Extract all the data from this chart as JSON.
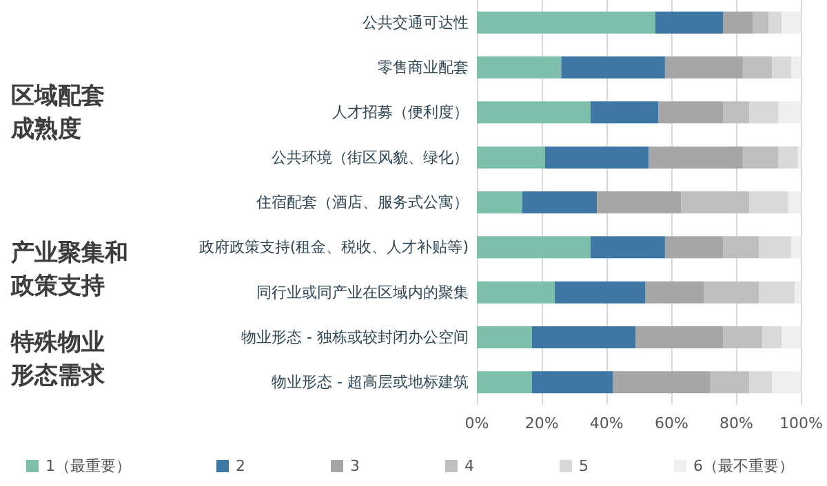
{
  "chart_data": {
    "type": "bar",
    "orientation": "horizontal",
    "stacked": true,
    "categories": [
      "公共交通可达性",
      "零售商业配套",
      "人才招募（便利度）",
      "公共环境（街区风貌、绿化）",
      "住宿配套（酒店、服务式公寓）",
      "政府政策支持(租金、税收、人才补贴等)",
      "同行业或同产业在区域内的聚集",
      "物业形态 - 独栋或较封闭办公空间",
      "物业形态 - 超高层或地标建筑"
    ],
    "series": [
      {
        "name": "1（最重要）",
        "color": "#7dbfab",
        "values": [
          55,
          26,
          35,
          21,
          14,
          35,
          24,
          17,
          17
        ]
      },
      {
        "name": "2",
        "color": "#3e77a3",
        "values": [
          21,
          32,
          21,
          32,
          23,
          23,
          28,
          32,
          25
        ]
      },
      {
        "name": "3",
        "color": "#a6a6a6",
        "values": [
          9,
          24,
          20,
          29,
          26,
          18,
          18,
          27,
          30
        ]
      },
      {
        "name": "4",
        "color": "#bfbfbf",
        "values": [
          5,
          9,
          8,
          11,
          21,
          11,
          17,
          12,
          12
        ]
      },
      {
        "name": "5",
        "color": "#d9d9d9",
        "values": [
          4,
          6,
          9,
          6,
          12,
          10,
          11,
          6,
          7
        ]
      },
      {
        "name": "6（最不重要）",
        "color": "#efefef",
        "values": [
          6,
          3,
          7,
          1,
          4,
          3,
          2,
          6,
          9
        ]
      }
    ],
    "xlim": [
      0,
      100
    ],
    "xticks": [
      {
        "value": 0,
        "label": "0%"
      },
      {
        "value": 20,
        "label": "20%"
      },
      {
        "value": 40,
        "label": "40%"
      },
      {
        "value": 60,
        "label": "60%"
      },
      {
        "value": 80,
        "label": "80%"
      },
      {
        "value": 100,
        "label": "100%"
      }
    ],
    "grid": "x",
    "legend": "bottom",
    "annotations": [
      "区域配套成熟度",
      "产业聚集和政策支持",
      "特殊物业形态需求"
    ]
  }
}
